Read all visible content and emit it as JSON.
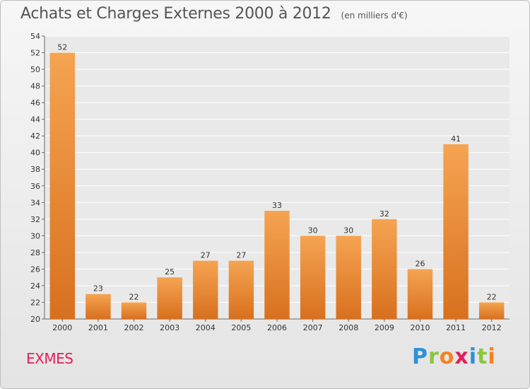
{
  "title": "Achats et Charges Externes 2000 à 2012",
  "unit": "(en milliers d'€)",
  "town": "EXMES",
  "logo": [
    "P",
    "r",
    "o",
    "x",
    "i",
    "t",
    "i"
  ],
  "colors": {
    "bar_top": "#f5a452",
    "bar_bottom": "#d8701e",
    "plot_bg": "#e9e9e9",
    "grid": "#ffffff",
    "title": "#555555",
    "town": "#e0205a"
  },
  "chart_data": {
    "type": "bar",
    "categories": [
      "2000",
      "2001",
      "2002",
      "2003",
      "2004",
      "2005",
      "2006",
      "2007",
      "2008",
      "2009",
      "2010",
      "2011",
      "2012"
    ],
    "values": [
      52,
      23,
      22,
      25,
      27,
      27,
      33,
      30,
      30,
      32,
      26,
      41,
      22
    ],
    "title": "Achats et Charges Externes 2000 à 2012",
    "subtitle": "(en milliers d'€)",
    "xlabel": "",
    "ylabel": "",
    "ylim": [
      20,
      54
    ],
    "yticks": [
      20,
      22,
      24,
      26,
      28,
      30,
      32,
      34,
      36,
      38,
      40,
      42,
      44,
      46,
      48,
      50,
      52,
      54
    ],
    "grid": true,
    "data_labels": true
  }
}
